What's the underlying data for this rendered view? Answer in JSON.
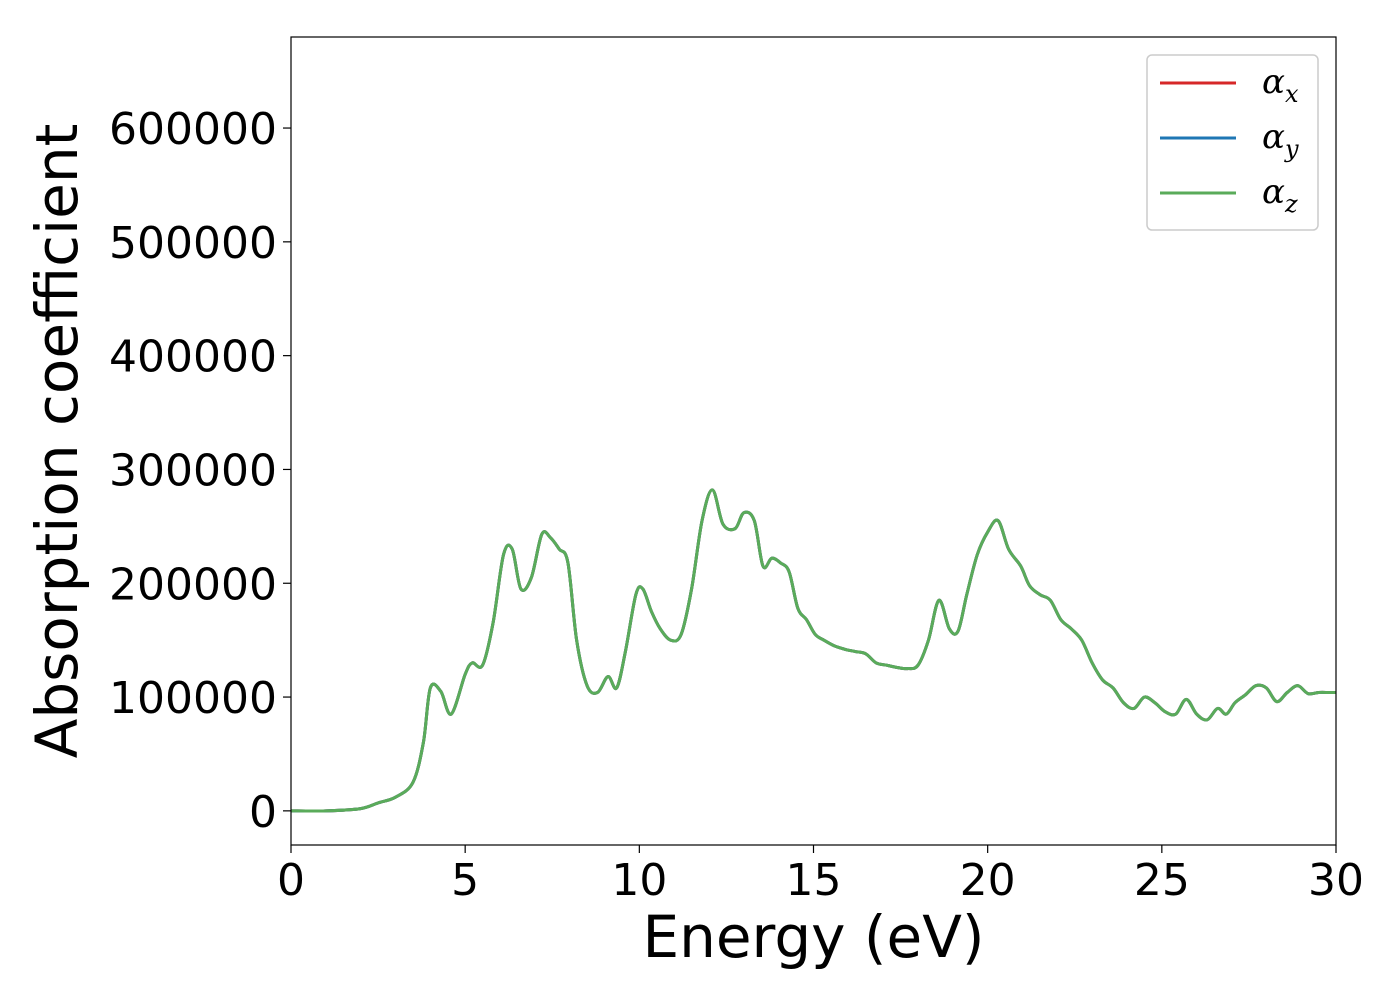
{
  "chart_data": {
    "type": "line",
    "title": "",
    "xlabel": "Energy (eV)",
    "ylabel": "Absorption coefficient",
    "xlim": [
      0,
      30
    ],
    "ylim": [
      -30000,
      680000
    ],
    "xticks": [
      "0",
      "5",
      "10",
      "15",
      "20",
      "25",
      "30"
    ],
    "xtick_values": [
      0,
      5,
      10,
      15,
      20,
      25,
      30
    ],
    "yticks": [
      "0",
      "100000",
      "200000",
      "300000",
      "400000",
      "500000",
      "600000"
    ],
    "ytick_values": [
      0,
      100000,
      200000,
      300000,
      400000,
      500000,
      600000
    ],
    "grid": false,
    "legend_position": "top-right",
    "x": [
      0,
      1.0,
      2.0,
      2.5,
      3.0,
      3.5,
      3.8,
      4.0,
      4.3,
      4.6,
      5.0,
      5.2,
      5.5,
      5.8,
      6.1,
      6.35,
      6.6,
      6.9,
      7.2,
      7.45,
      7.7,
      7.95,
      8.2,
      8.5,
      8.8,
      9.1,
      9.35,
      9.6,
      9.9,
      10.1,
      10.35,
      10.6,
      10.9,
      11.2,
      11.5,
      11.8,
      12.1,
      12.4,
      12.75,
      13.0,
      13.3,
      13.55,
      13.8,
      14.05,
      14.3,
      14.55,
      14.8,
      15.05,
      15.3,
      15.6,
      15.9,
      16.2,
      16.5,
      16.8,
      17.1,
      17.4,
      17.7,
      18.0,
      18.3,
      18.6,
      18.9,
      19.15,
      19.4,
      19.7,
      20.0,
      20.3,
      20.6,
      20.95,
      21.2,
      21.5,
      21.8,
      22.1,
      22.4,
      22.7,
      23.0,
      23.3,
      23.6,
      23.9,
      24.2,
      24.5,
      24.8,
      25.1,
      25.4,
      25.7,
      26.0,
      26.3,
      26.6,
      26.85,
      27.1,
      27.4,
      27.7,
      28.0,
      28.3,
      28.6,
      28.9,
      29.2,
      29.5,
      29.8,
      30.0
    ],
    "series": [
      {
        "name": "αx",
        "color": "#d62728",
        "values": [
          0,
          0,
          2000,
          7000,
          12000,
          25000,
          60000,
          108000,
          105000,
          85000,
          120000,
          130000,
          128000,
          165000,
          225000,
          230000,
          195000,
          205000,
          243000,
          240000,
          230000,
          218000,
          150000,
          110000,
          104000,
          118000,
          108000,
          140000,
          190000,
          195000,
          175000,
          160000,
          150000,
          155000,
          195000,
          255000,
          282000,
          252000,
          248000,
          262000,
          255000,
          215000,
          222000,
          218000,
          210000,
          178000,
          168000,
          155000,
          150000,
          145000,
          142000,
          140000,
          138000,
          130000,
          128000,
          126000,
          125000,
          128000,
          150000,
          185000,
          160000,
          158000,
          190000,
          225000,
          245000,
          255000,
          230000,
          215000,
          198000,
          190000,
          185000,
          168000,
          160000,
          150000,
          130000,
          115000,
          108000,
          95000,
          90000,
          100000,
          95000,
          87000,
          85000,
          98000,
          85000,
          80000,
          90000,
          85000,
          95000,
          102000,
          110000,
          108000,
          96000,
          104000,
          110000,
          103000,
          104000,
          104000,
          104000
        ]
      },
      {
        "name": "αy",
        "color": "#1f77b4",
        "values": [
          0,
          0,
          2000,
          7000,
          12000,
          25000,
          60000,
          108000,
          105000,
          85000,
          120000,
          130000,
          128000,
          165000,
          225000,
          230000,
          195000,
          205000,
          243000,
          240000,
          230000,
          218000,
          150000,
          110000,
          104000,
          118000,
          108000,
          140000,
          190000,
          195000,
          175000,
          160000,
          150000,
          155000,
          195000,
          255000,
          282000,
          252000,
          248000,
          262000,
          255000,
          215000,
          222000,
          218000,
          210000,
          178000,
          168000,
          155000,
          150000,
          145000,
          142000,
          140000,
          138000,
          130000,
          128000,
          126000,
          125000,
          128000,
          150000,
          185000,
          160000,
          158000,
          190000,
          225000,
          245000,
          255000,
          230000,
          215000,
          198000,
          190000,
          185000,
          168000,
          160000,
          150000,
          130000,
          115000,
          108000,
          95000,
          90000,
          100000,
          95000,
          87000,
          85000,
          98000,
          85000,
          80000,
          90000,
          85000,
          95000,
          102000,
          110000,
          108000,
          96000,
          104000,
          110000,
          103000,
          104000,
          104000,
          104000
        ]
      },
      {
        "name": "αz",
        "color": "#5aab5a",
        "values": [
          0,
          0,
          2000,
          7000,
          12000,
          25000,
          60000,
          108000,
          105000,
          85000,
          120000,
          130000,
          128000,
          165000,
          225000,
          230000,
          195000,
          205000,
          243000,
          240000,
          230000,
          218000,
          150000,
          110000,
          104000,
          118000,
          108000,
          140000,
          190000,
          195000,
          175000,
          160000,
          150000,
          155000,
          195000,
          255000,
          282000,
          252000,
          248000,
          262000,
          255000,
          215000,
          222000,
          218000,
          210000,
          178000,
          168000,
          155000,
          150000,
          145000,
          142000,
          140000,
          138000,
          130000,
          128000,
          126000,
          125000,
          128000,
          150000,
          185000,
          160000,
          158000,
          190000,
          225000,
          245000,
          255000,
          230000,
          215000,
          198000,
          190000,
          185000,
          168000,
          160000,
          150000,
          130000,
          115000,
          108000,
          95000,
          90000,
          100000,
          95000,
          87000,
          85000,
          98000,
          85000,
          80000,
          90000,
          85000,
          95000,
          102000,
          110000,
          108000,
          96000,
          104000,
          110000,
          103000,
          104000,
          104000,
          104000
        ]
      }
    ],
    "legend": [
      {
        "symbol": "α",
        "sub": "x",
        "color": "#d62728"
      },
      {
        "symbol": "α",
        "sub": "y",
        "color": "#1f77b4"
      },
      {
        "symbol": "α",
        "sub": "z",
        "color": "#5aab5a"
      }
    ]
  }
}
